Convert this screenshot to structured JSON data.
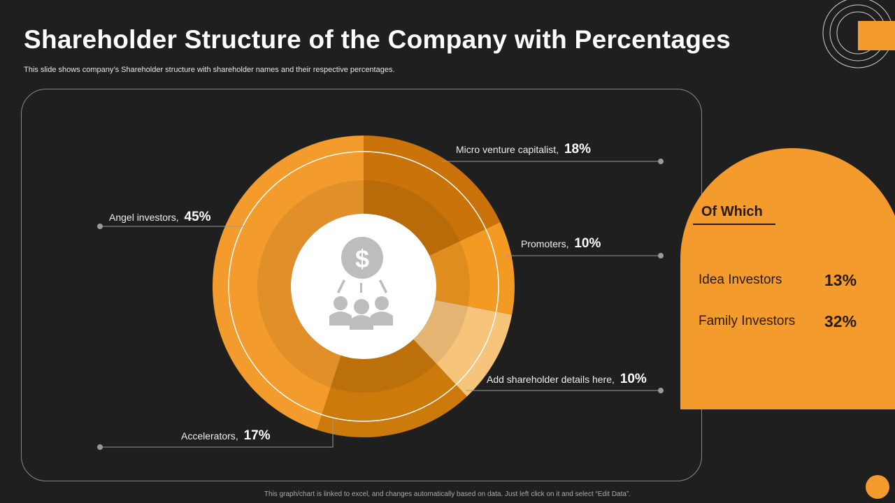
{
  "slide": {
    "title": "Shareholder Structure of the Company with Percentages",
    "subtitle": "This slide shows company’s Shareholder structure with shareholder names and their respective percentages.",
    "footer": "This graph/chart is linked to excel, and changes automatically based on data. Just left click on it and select “Edit Data”."
  },
  "chart_data": {
    "type": "pie",
    "title": "",
    "center_icon": "dollar-investors-icon",
    "slices": [
      {
        "name": "Micro venture capitalist",
        "value": 18,
        "label": "18%",
        "color": "#c9730a"
      },
      {
        "name": "Promoters",
        "value": 10,
        "label": "10%",
        "color": "#f39a22"
      },
      {
        "name": "Add shareholder details here",
        "value": 10,
        "label": "10%",
        "color": "#f7c47c"
      },
      {
        "name": "Accelerators",
        "value": 17,
        "label": "17%",
        "color": "#cc7a0c"
      },
      {
        "name": "Angel investors",
        "value": 45,
        "label": "45%",
        "color": "#f39c2d"
      }
    ]
  },
  "breakdown": {
    "title": "Of Which",
    "items": [
      {
        "name": "Idea Investors",
        "value": "13%"
      },
      {
        "name": "Family Investors",
        "value": "32%"
      }
    ]
  },
  "colors": {
    "background": "#1f1f1f",
    "accent": "#f39c2d"
  }
}
